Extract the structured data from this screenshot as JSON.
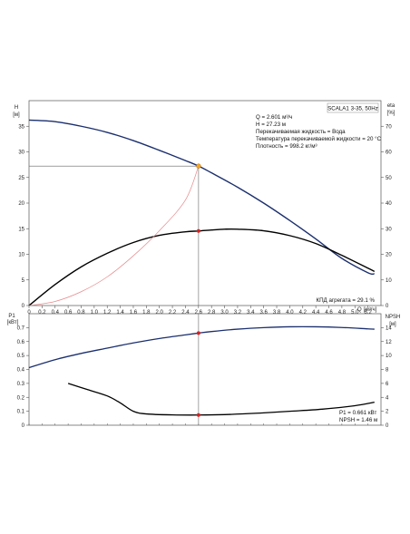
{
  "chart_data": [
    {
      "type": "line",
      "title": "SCALA1 3-35, 50Hz",
      "ylabel": "H",
      "ylabel_unit": "[м]",
      "y2label": "eta",
      "y2label_unit": "[%]",
      "xlabel": "Q",
      "xlabel_unit": "[м³/ч]",
      "xlim": [
        0,
        5.4
      ],
      "ylim": [
        0,
        40
      ],
      "y2lim": [
        0,
        80
      ],
      "x_ticks": [
        "0",
        "0.2",
        "0.4",
        "0.6",
        "0.8",
        "1.0",
        "1.2",
        "1.4",
        "1.6",
        "1.8",
        "2.0",
        "2.2",
        "2.4",
        "2.6",
        "2.8",
        "3.0",
        "3.2",
        "3.4",
        "3.6",
        "3.8",
        "4.0",
        "4.2",
        "4.4",
        "4.6",
        "4.8",
        "5.0",
        "5.2"
      ],
      "y_ticks": [
        "0",
        "5",
        "10",
        "15",
        "20",
        "25",
        "30",
        "35"
      ],
      "y2_ticks": [
        "0",
        "10",
        "20",
        "30",
        "40",
        "50",
        "60",
        "70"
      ],
      "grid": false,
      "annotations": [
        "Q = 2.601 м³/ч",
        "H = 27.23 м",
        "Перекачиваемая жидкость = Вода",
        "Температура перекачиваемой жидкости = 20 °C",
        "Плотность = 998.2 кг/м³"
      ],
      "efficiency_label": "КПД агрегата = 29.1 %",
      "series": [
        {
          "axis": "left",
          "color": "#1b2f6e",
          "x": [
            0,
            0.4,
            0.8,
            1.2,
            1.6,
            2.0,
            2.4,
            2.601,
            2.8,
            3.2,
            3.6,
            4.0,
            4.4,
            4.8,
            5.2,
            5.3
          ],
          "y": [
            36.2,
            35.9,
            35.0,
            33.8,
            32.2,
            30.3,
            28.3,
            27.23,
            25.9,
            23.1,
            20.0,
            16.6,
            13.0,
            9.2,
            6.4,
            6.2
          ]
        },
        {
          "axis": "right",
          "color": "#000000",
          "x": [
            0,
            0.4,
            0.8,
            1.2,
            1.6,
            2.0,
            2.4,
            2.601,
            2.8,
            3.0,
            3.2,
            3.6,
            4.0,
            4.4,
            4.8,
            5.2,
            5.3
          ],
          "y": [
            0,
            8.2,
            15.1,
            20.4,
            24.6,
            27.4,
            28.8,
            29.1,
            29.5,
            29.8,
            29.8,
            29.2,
            27.3,
            24.2,
            19.6,
            14.6,
            13.3
          ]
        },
        {
          "axis": "left",
          "color": "#e8898c",
          "x": [
            0,
            0.4,
            0.8,
            1.2,
            1.6,
            2.0,
            2.4,
            2.601
          ],
          "y": [
            0,
            0.8,
            2.7,
            5.6,
            9.7,
            14.6,
            20.6,
            27.23
          ]
        }
      ],
      "operating_point": {
        "x": 2.601,
        "y": 27.23,
        "efficiency": 29.1
      }
    },
    {
      "type": "line",
      "ylabel": "P1",
      "ylabel_unit": "[кВт]",
      "y2label": "NPSH",
      "y2label_unit": "[м]",
      "xlim": [
        0,
        5.4
      ],
      "ylim": [
        0,
        0.8
      ],
      "y2lim": [
        0,
        16
      ],
      "y_ticks": [
        "0",
        "0.1",
        "0.2",
        "0.3",
        "0.4",
        "0.5",
        "0.6",
        "0.7"
      ],
      "y2_ticks": [
        "0",
        "2",
        "4",
        "6",
        "8",
        "10",
        "12",
        "14"
      ],
      "grid": false,
      "annotations": [
        "P1 = 0.661 кВт",
        "NPSH = 1.46 м"
      ],
      "series": [
        {
          "axis": "left",
          "color": "#1b2f6e",
          "x": [
            0,
            0.4,
            0.8,
            1.2,
            1.6,
            2.0,
            2.4,
            2.601,
            2.8,
            3.2,
            3.6,
            4.0,
            4.4,
            4.8,
            5.2,
            5.3
          ],
          "y": [
            0.413,
            0.47,
            0.515,
            0.553,
            0.59,
            0.622,
            0.648,
            0.661,
            0.672,
            0.689,
            0.7,
            0.706,
            0.706,
            0.701,
            0.691,
            0.689
          ]
        },
        {
          "axis": "right",
          "color": "#000000",
          "x": [
            0.6,
            0.9,
            1.2,
            1.4,
            1.6,
            1.8,
            2.2,
            2.601,
            3.0,
            3.5,
            4.0,
            4.5,
            5.0,
            5.3
          ],
          "y": [
            6.0,
            5.1,
            4.2,
            3.2,
            2.0,
            1.62,
            1.48,
            1.46,
            1.52,
            1.72,
            2.0,
            2.3,
            2.8,
            3.3
          ]
        }
      ],
      "operating_point": {
        "x": 2.601,
        "p1": 0.661,
        "npsh": 1.46
      }
    }
  ]
}
